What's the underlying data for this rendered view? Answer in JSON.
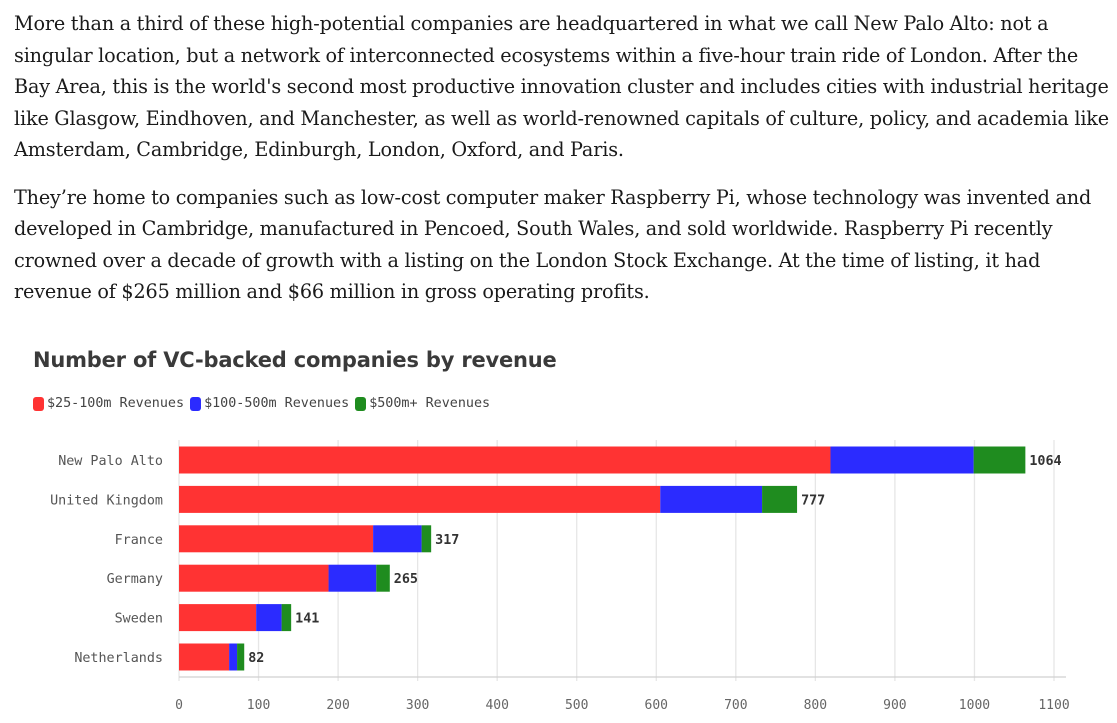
{
  "article": {
    "paragraphs": [
      "More than a third of these high-potential companies are headquartered in what we call New Palo Alto: not a singular location, but a network of interconnected ecosystems within a five-hour train ride of London. After the Bay Area, this is the world's second most productive innovation cluster and includes cities with industrial heritage like Glasgow, Eindhoven, and Manchester, as well as world-renowned capitals of culture, policy, and academia like Amsterdam, Cambridge, Edinburgh, London, Oxford, and Paris.",
      "They’re home to companies such as low-cost computer maker Raspberry Pi, whose technology was invented and developed in Cambridge, manufactured in Pencoed, South Wales, and sold worldwide. Raspberry Pi recently crowned over a decade of growth with a listing on the London Stock Exchange. At the time of listing, it had revenue of $265 million and $66 million in gross operating profits."
    ]
  },
  "chart_data": {
    "type": "bar",
    "orientation": "horizontal",
    "stacked": true,
    "title": "Number of VC-backed companies by revenue",
    "xlabel": "",
    "ylabel": "",
    "xlim": [
      0,
      1100
    ],
    "xticks": [
      0,
      100,
      200,
      300,
      400,
      500,
      600,
      700,
      800,
      900,
      1000,
      1100
    ],
    "grid": true,
    "legend_position": "top-left",
    "categories": [
      "New Palo Alto",
      "United Kingdom",
      "France",
      "Germany",
      "Sweden",
      "Netherlands"
    ],
    "series": [
      {
        "name": "$25-100m Revenues",
        "color": "#ff3333",
        "values": [
          819,
          605,
          244,
          188,
          97,
          63
        ]
      },
      {
        "name": "$100-500m Revenues",
        "color": "#2b2bff",
        "values": [
          180,
          128,
          61,
          60,
          32,
          10
        ]
      },
      {
        "name": "$500m+ Revenues",
        "color": "#1f8c1f",
        "values": [
          65,
          44,
          12,
          17,
          12,
          9
        ]
      }
    ],
    "totals": [
      1064,
      777,
      317,
      265,
      141,
      82
    ]
  }
}
